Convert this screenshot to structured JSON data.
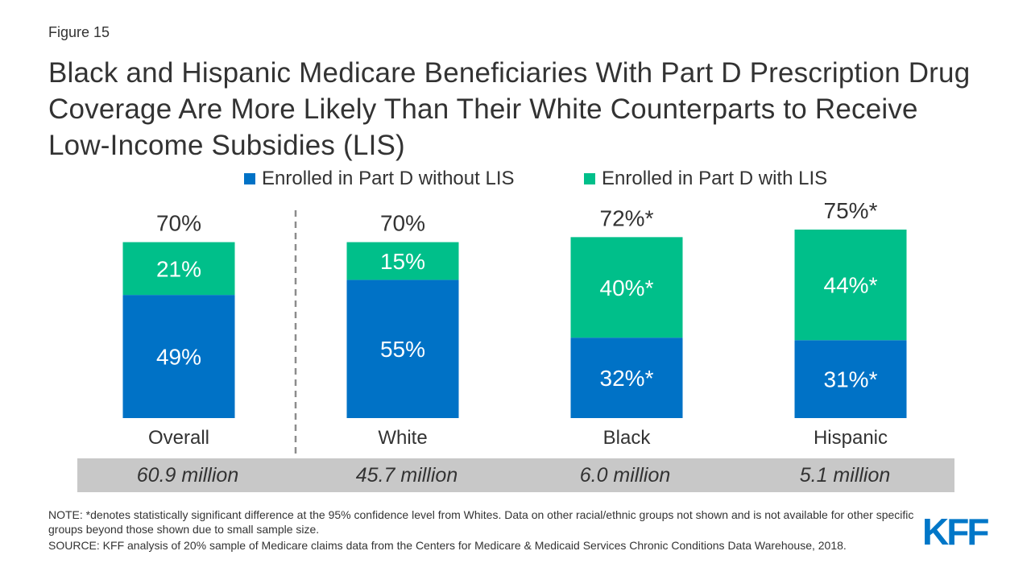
{
  "figure_label": "Figure 15",
  "title": "Black and Hispanic Medicare Beneficiaries With Part D Prescription Drug Coverage Are More Likely Than Their White Counterparts to Receive Low-Income Subsidies (LIS)",
  "colors": {
    "without_lis": "#0072c6",
    "with_lis": "#00bf8a",
    "totals_band": "#c8c8c8",
    "divider": "#8c8c8c"
  },
  "chart_data": {
    "type": "bar",
    "stacked": true,
    "categories": [
      "Overall",
      "White",
      "Black",
      "Hispanic"
    ],
    "series": [
      {
        "name": "Enrolled in Part D without LIS",
        "values": [
          49,
          55,
          32,
          31
        ],
        "labels": [
          "49%",
          "55%",
          "32%*",
          "31%*"
        ]
      },
      {
        "name": "Enrolled in Part D with LIS",
        "values": [
          21,
          15,
          40,
          44
        ],
        "labels": [
          "21%",
          "15%",
          "40%*",
          "44%*"
        ]
      }
    ],
    "totals": [
      70,
      70,
      72,
      75
    ],
    "total_labels": [
      "70%",
      "70%",
      "72%*",
      "75%*"
    ],
    "legend_position": "top",
    "grid": false
  },
  "counts": [
    "60.9 million",
    "45.7 million",
    "6.0 million",
    "5.1 million"
  ],
  "note": "NOTE: *denotes statistically significant difference at the 95% confidence level from Whites. Data on other racial/ethnic groups not shown and is not available for other specific groups beyond those shown due to small sample size.",
  "source": "SOURCE: KFF analysis of 20% sample of Medicare claims data from the Centers for Medicare & Medicaid Services Chronic Conditions Data Warehouse, 2018.",
  "logo": "KFF"
}
